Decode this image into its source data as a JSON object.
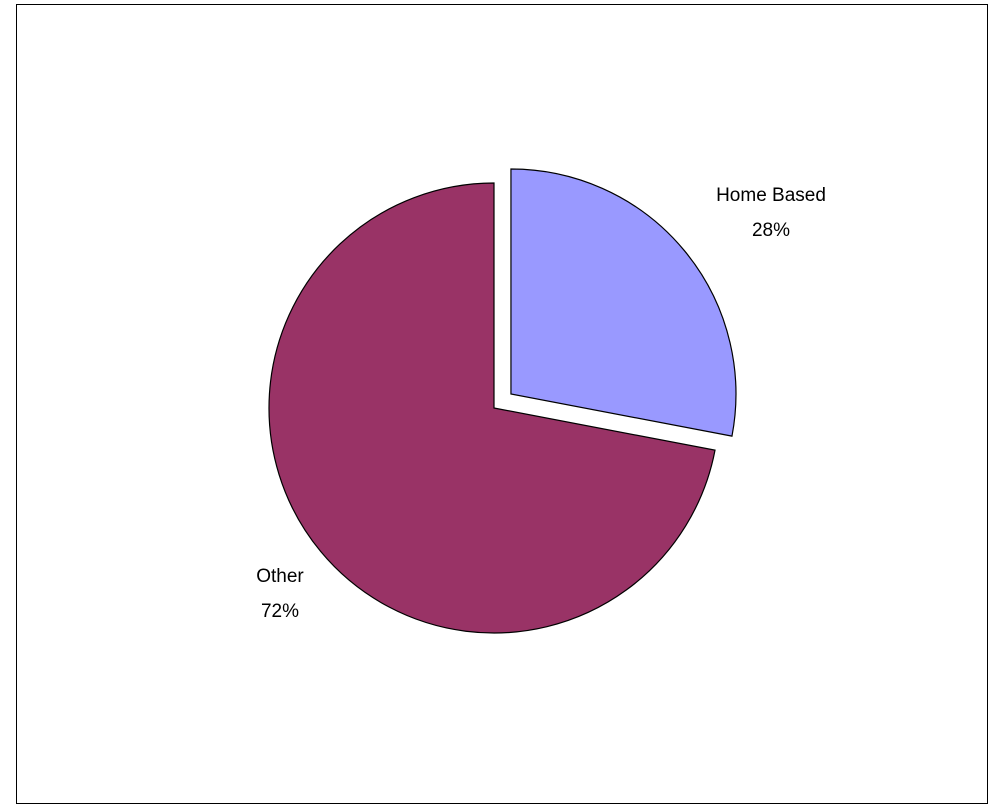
{
  "chart_data": {
    "type": "pie",
    "slices": [
      {
        "label": "Home Based",
        "percent_label": "28%",
        "value": 28,
        "color": "#9999FF",
        "exploded": true
      },
      {
        "label": "Other",
        "percent_label": "72%",
        "value": 72,
        "color": "#993366",
        "exploded": false
      }
    ],
    "legend": "none"
  }
}
